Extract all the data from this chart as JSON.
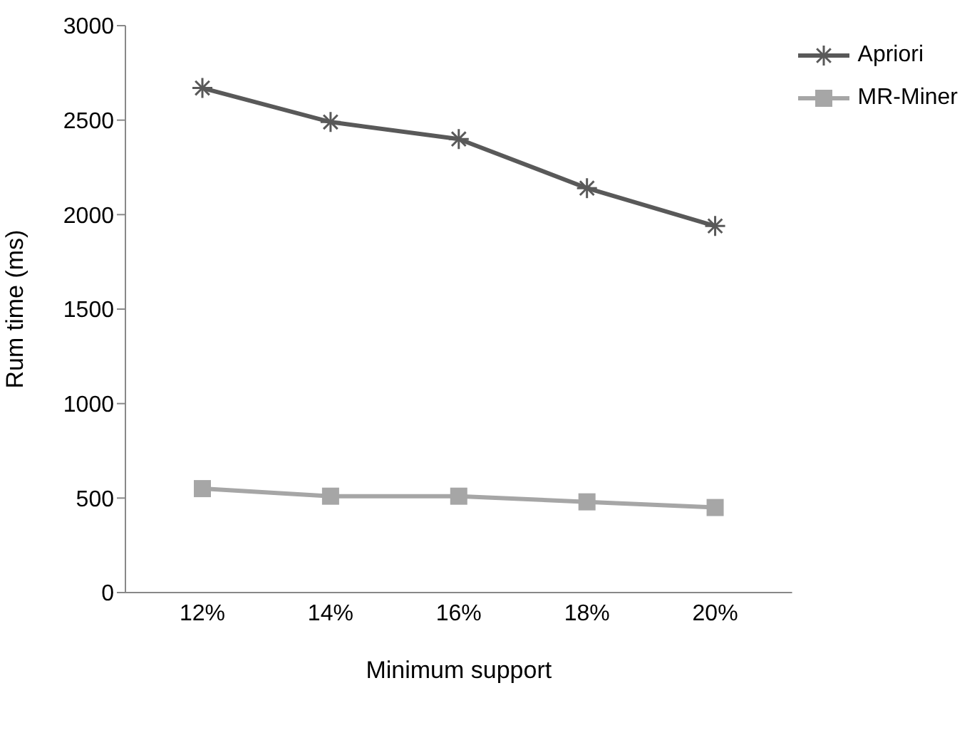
{
  "chart_data": {
    "type": "line",
    "xlabel": "Minimum support",
    "ylabel": "Rum time (ms)",
    "categories": [
      "12%",
      "14%",
      "16%",
      "18%",
      "20%"
    ],
    "series": [
      {
        "name": "Apriori",
        "color": "#595959",
        "marker": "cross",
        "values": [
          2670,
          2490,
          2400,
          2140,
          1940
        ]
      },
      {
        "name": "MR-Miner",
        "color": "#a6a6a6",
        "marker": "square",
        "values": [
          550,
          510,
          510,
          480,
          450
        ]
      }
    ],
    "ylim": [
      0,
      3000
    ],
    "yticks": [
      0,
      500,
      1000,
      1500,
      2000,
      2500,
      3000
    ],
    "grid": false,
    "legend": "top right",
    "line_style": "solid"
  }
}
